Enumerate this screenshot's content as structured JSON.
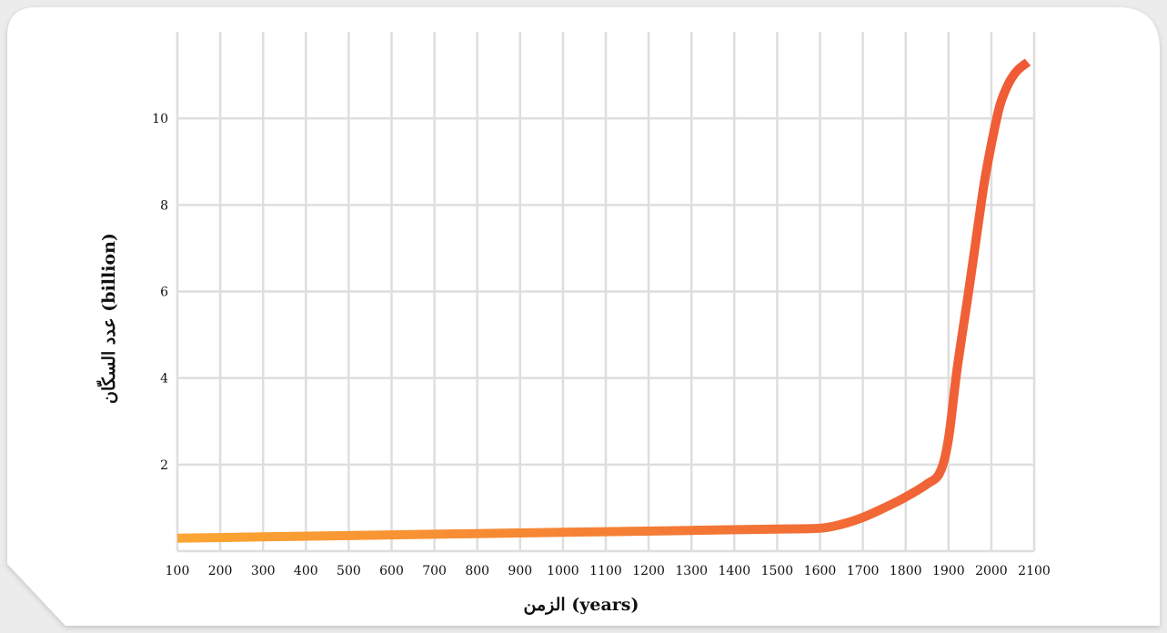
{
  "chart_data": {
    "type": "line",
    "xlabel": "الزمن (years)",
    "ylabel": "عدد السكّان (billion)",
    "x_ticks": [
      100,
      200,
      300,
      400,
      500,
      600,
      700,
      800,
      900,
      1000,
      1100,
      1200,
      1300,
      1400,
      1500,
      1600,
      1700,
      1800,
      1900,
      2000,
      2100
    ],
    "y_ticks": [
      2,
      4,
      6,
      8,
      10
    ],
    "xlim": [
      100,
      2100
    ],
    "ylim": [
      0,
      12
    ],
    "grid": true,
    "series": [
      {
        "x": [
          100,
          300,
          500,
          700,
          900,
          1100,
          1300,
          1500,
          1600,
          1650,
          1700,
          1750,
          1800,
          1850,
          1880,
          1900,
          1920,
          1950,
          1980,
          2000,
          2020,
          2040,
          2060,
          2085
        ],
        "y": [
          0.3,
          0.33,
          0.36,
          0.39,
          0.42,
          0.45,
          0.48,
          0.51,
          0.53,
          0.62,
          0.78,
          1.0,
          1.25,
          1.55,
          1.82,
          2.6,
          4.2,
          6.2,
          8.3,
          9.4,
          10.3,
          10.8,
          11.1,
          11.3
        ]
      }
    ],
    "colors": {
      "line_start": "#fba733",
      "line_end": "#ef5a36",
      "grid": "#dedede",
      "card_background": "#ffffff",
      "page_background": "#ececec"
    }
  }
}
